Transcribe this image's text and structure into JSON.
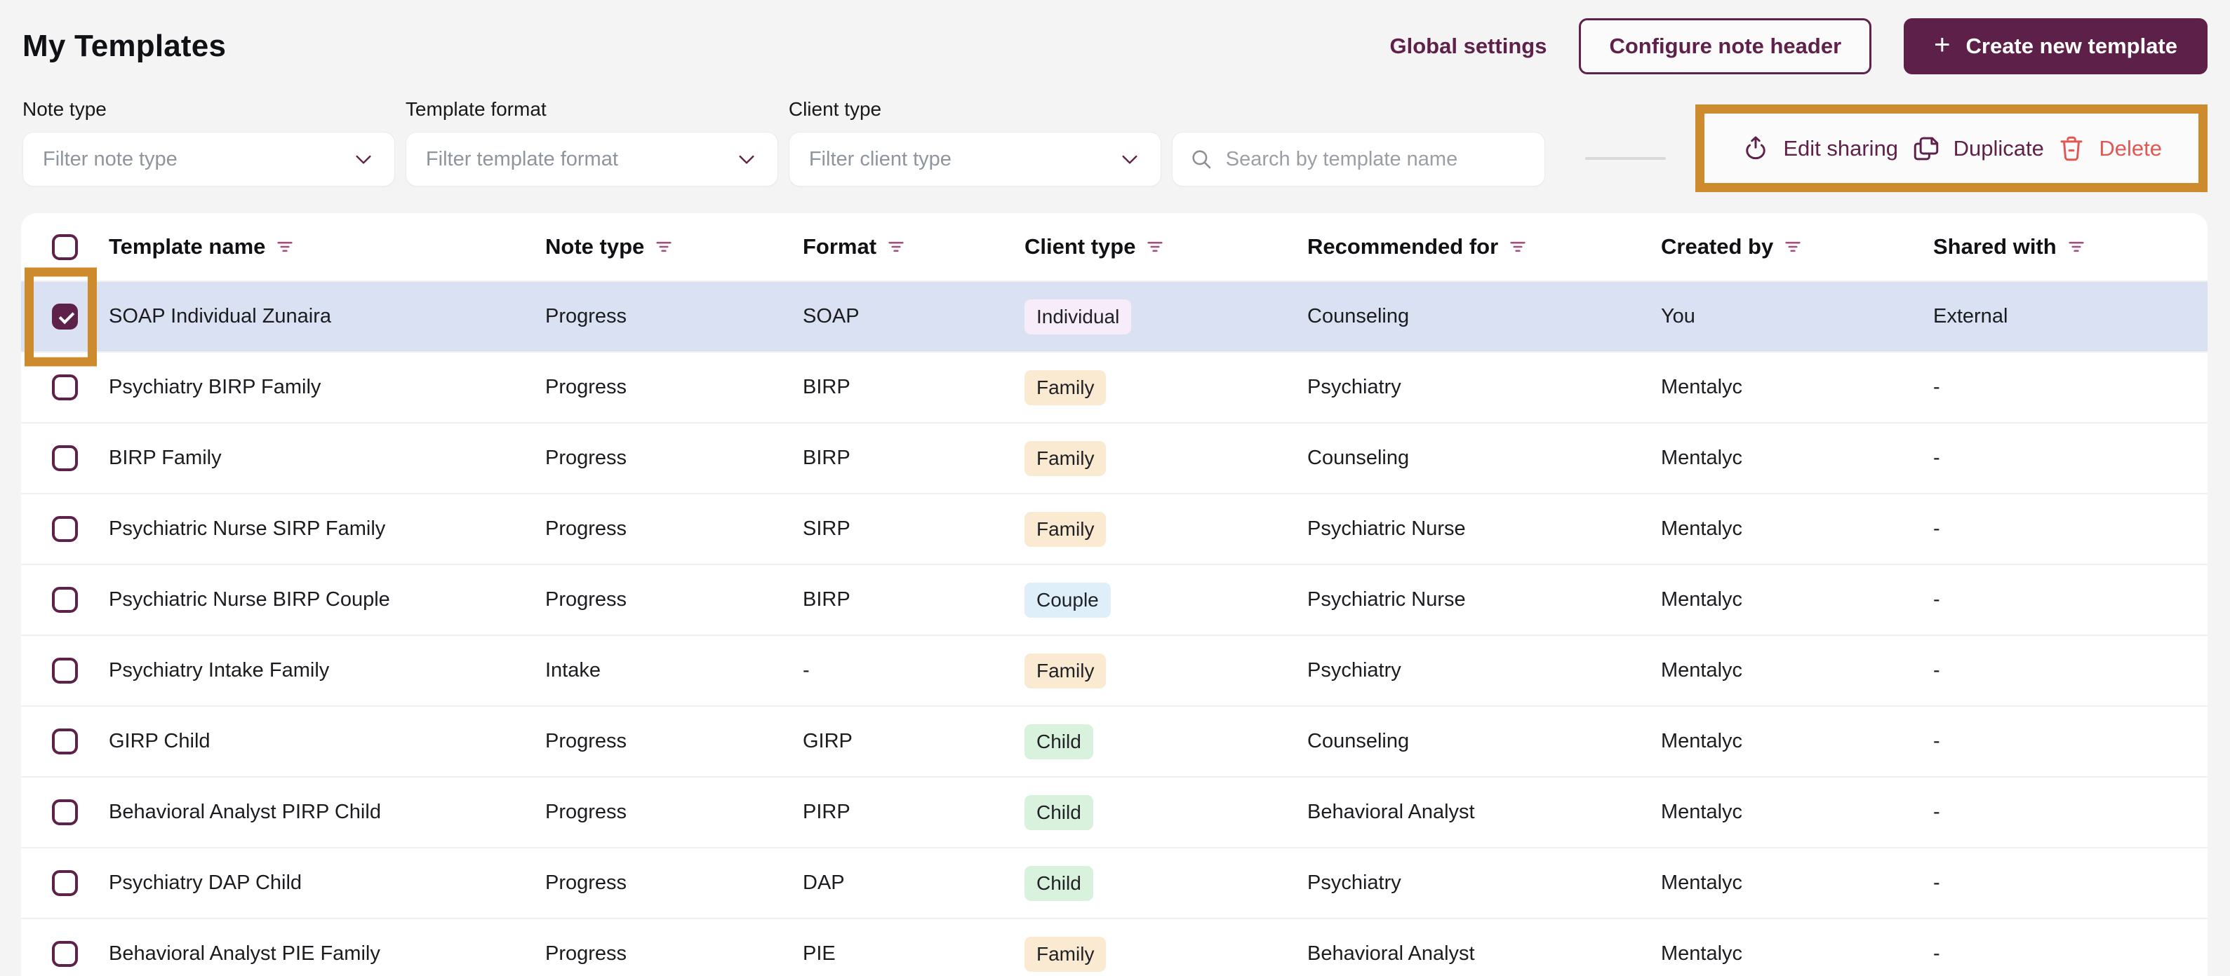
{
  "page": {
    "title": "My Templates"
  },
  "header": {
    "global_settings_label": "Global settings",
    "configure_note_header_label": "Configure note header",
    "create_new_template_label": "Create new template",
    "create_plus_glyph": "+"
  },
  "filters": {
    "note_type": {
      "label": "Note type",
      "placeholder": "Filter note type"
    },
    "template_format": {
      "label": "Template format",
      "placeholder": "Filter template format"
    },
    "client_type": {
      "label": "Client type",
      "placeholder": "Filter client type"
    },
    "search": {
      "placeholder": "Search by template name"
    }
  },
  "bulk_actions": {
    "edit_sharing_label": "Edit sharing",
    "duplicate_label": "Duplicate",
    "delete_label": "Delete"
  },
  "table": {
    "columns": [
      "Template name",
      "Note type",
      "Format",
      "Client type",
      "Recommended for",
      "Created by",
      "Shared with"
    ],
    "client_type_colors": {
      "Individual": "#F6ECFA",
      "Family": "#FBEAD2",
      "Couple": "#DEEFF9",
      "Child": "#D9F2DE"
    },
    "rows": [
      {
        "name": "SOAP Individual Zunaira",
        "note_type": "Progress",
        "format": "SOAP",
        "client_type": "Individual",
        "recommended_for": "Counseling",
        "created_by": "You",
        "shared_with": "External",
        "selected": true
      },
      {
        "name": "Psychiatry BIRP Family",
        "note_type": "Progress",
        "format": "BIRP",
        "client_type": "Family",
        "recommended_for": "Psychiatry",
        "created_by": "Mentalyc",
        "shared_with": "-",
        "selected": false
      },
      {
        "name": "BIRP Family",
        "note_type": "Progress",
        "format": "BIRP",
        "client_type": "Family",
        "recommended_for": "Counseling",
        "created_by": "Mentalyc",
        "shared_with": "-",
        "selected": false
      },
      {
        "name": "Psychiatric Nurse SIRP Family",
        "note_type": "Progress",
        "format": "SIRP",
        "client_type": "Family",
        "recommended_for": "Psychiatric Nurse",
        "created_by": "Mentalyc",
        "shared_with": "-",
        "selected": false
      },
      {
        "name": "Psychiatric Nurse BIRP Couple",
        "note_type": "Progress",
        "format": "BIRP",
        "client_type": "Couple",
        "recommended_for": "Psychiatric Nurse",
        "created_by": "Mentalyc",
        "shared_with": "-",
        "selected": false
      },
      {
        "name": "Psychiatry Intake Family",
        "note_type": "Intake",
        "format": "-",
        "client_type": "Family",
        "recommended_for": "Psychiatry",
        "created_by": "Mentalyc",
        "shared_with": "-",
        "selected": false
      },
      {
        "name": "GIRP Child",
        "note_type": "Progress",
        "format": "GIRP",
        "client_type": "Child",
        "recommended_for": "Counseling",
        "created_by": "Mentalyc",
        "shared_with": "-",
        "selected": false
      },
      {
        "name": "Behavioral Analyst PIRP Child",
        "note_type": "Progress",
        "format": "PIRP",
        "client_type": "Child",
        "recommended_for": "Behavioral Analyst",
        "created_by": "Mentalyc",
        "shared_with": "-",
        "selected": false
      },
      {
        "name": "Psychiatry DAP Child",
        "note_type": "Progress",
        "format": "DAP",
        "client_type": "Child",
        "recommended_for": "Psychiatry",
        "created_by": "Mentalyc",
        "shared_with": "-",
        "selected": false
      },
      {
        "name": "Behavioral Analyst PIE Family",
        "note_type": "Progress",
        "format": "PIE",
        "client_type": "Family",
        "recommended_for": "Behavioral Analyst",
        "created_by": "Mentalyc",
        "shared_with": "-",
        "selected": false
      }
    ]
  },
  "colors": {
    "accent_maroon": "#5E2149",
    "annotation_orange": "#CE8B2D",
    "delete_red": "#E25752",
    "selected_row_bg": "#D9E1F2",
    "page_bg": "#F4F4F5"
  }
}
